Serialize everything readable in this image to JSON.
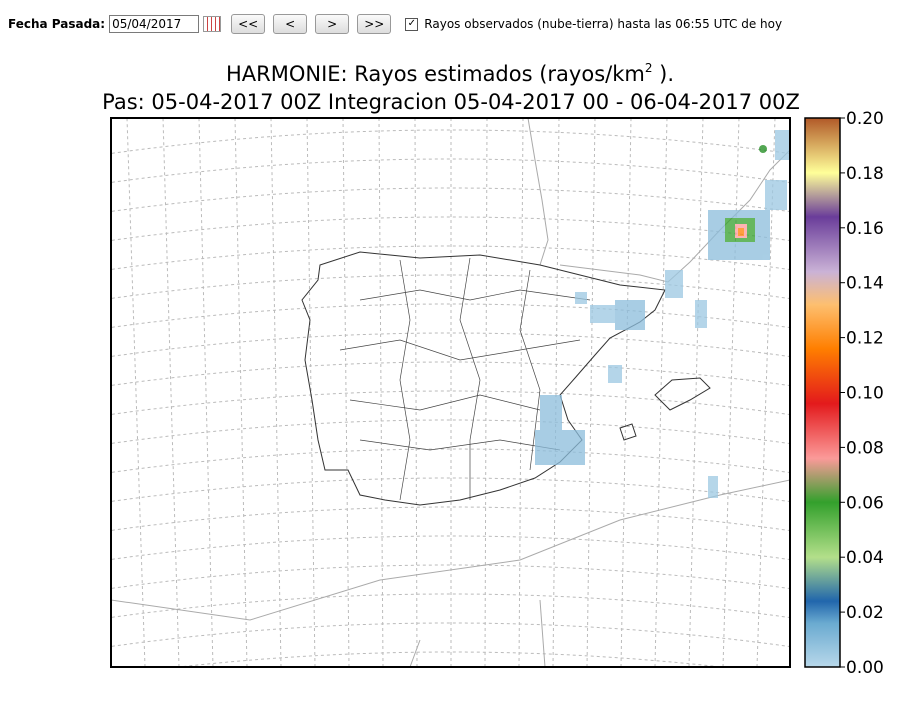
{
  "toolbar": {
    "date_label": "Fecha Pasada:",
    "date_value": "05/04/2017",
    "buttons": [
      "<<",
      "<",
      ">",
      ">>"
    ],
    "checkbox_checked": true,
    "checkbox_label": "Rayos observados (nube-tierra) hasta las 06:55 UTC de hoy"
  },
  "map": {
    "title_main": "HARMONIE: Rayos estimados  (rayos/km",
    "title_sup": "2",
    "title_end": " ).",
    "subtitle": "Pas: 05-04-2017 00Z Integracion 05-04-2017 00 - 06-04-2017 00Z",
    "colorbar_ticks": [
      "0.20",
      "0.18",
      "0.16",
      "0.14",
      "0.12",
      "0.10",
      "0.08",
      "0.06",
      "0.04",
      "0.02",
      "0.00"
    ]
  }
}
